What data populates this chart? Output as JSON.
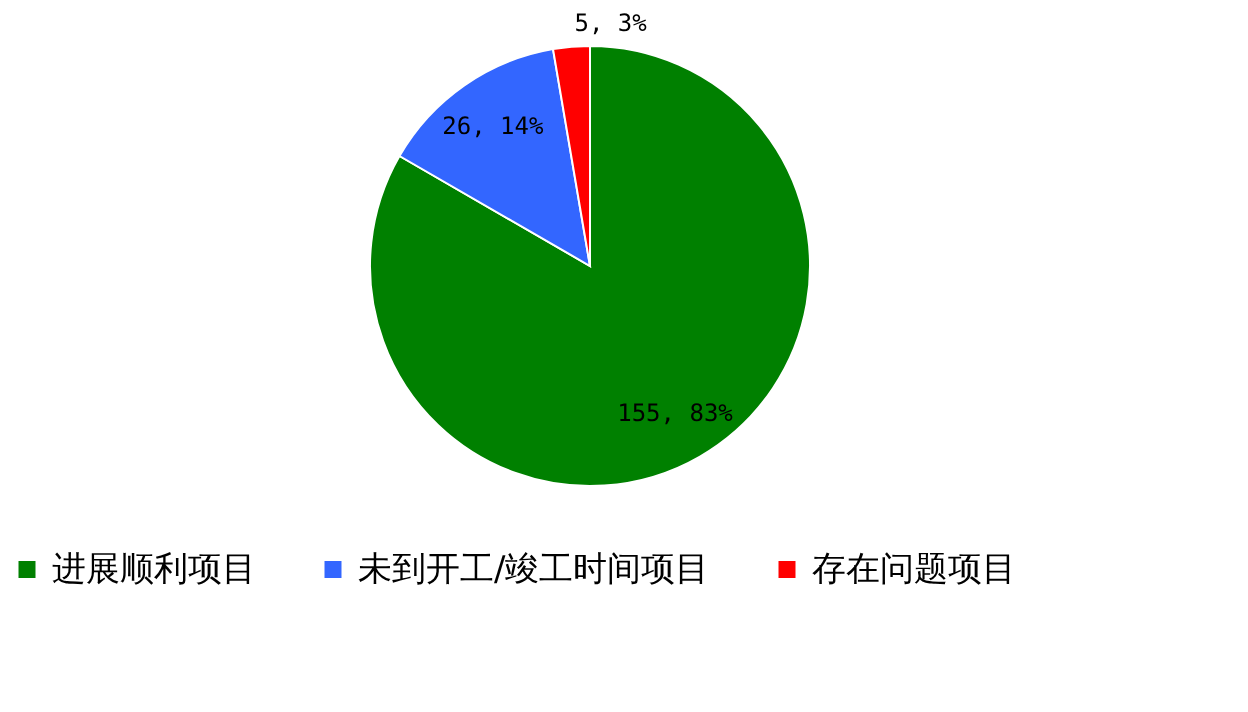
{
  "chart_data": {
    "type": "pie",
    "categories": [
      "进展顺利项目",
      "未到开工/竣工时间项目",
      "存在问题项目"
    ],
    "values": [
      155,
      26,
      5
    ],
    "colors": [
      "#008000",
      "#3366ff",
      "#ff0000"
    ],
    "value_labels": [
      "155, 83%",
      "26, 14%",
      "5, 3%"
    ],
    "legend": "bottom"
  }
}
